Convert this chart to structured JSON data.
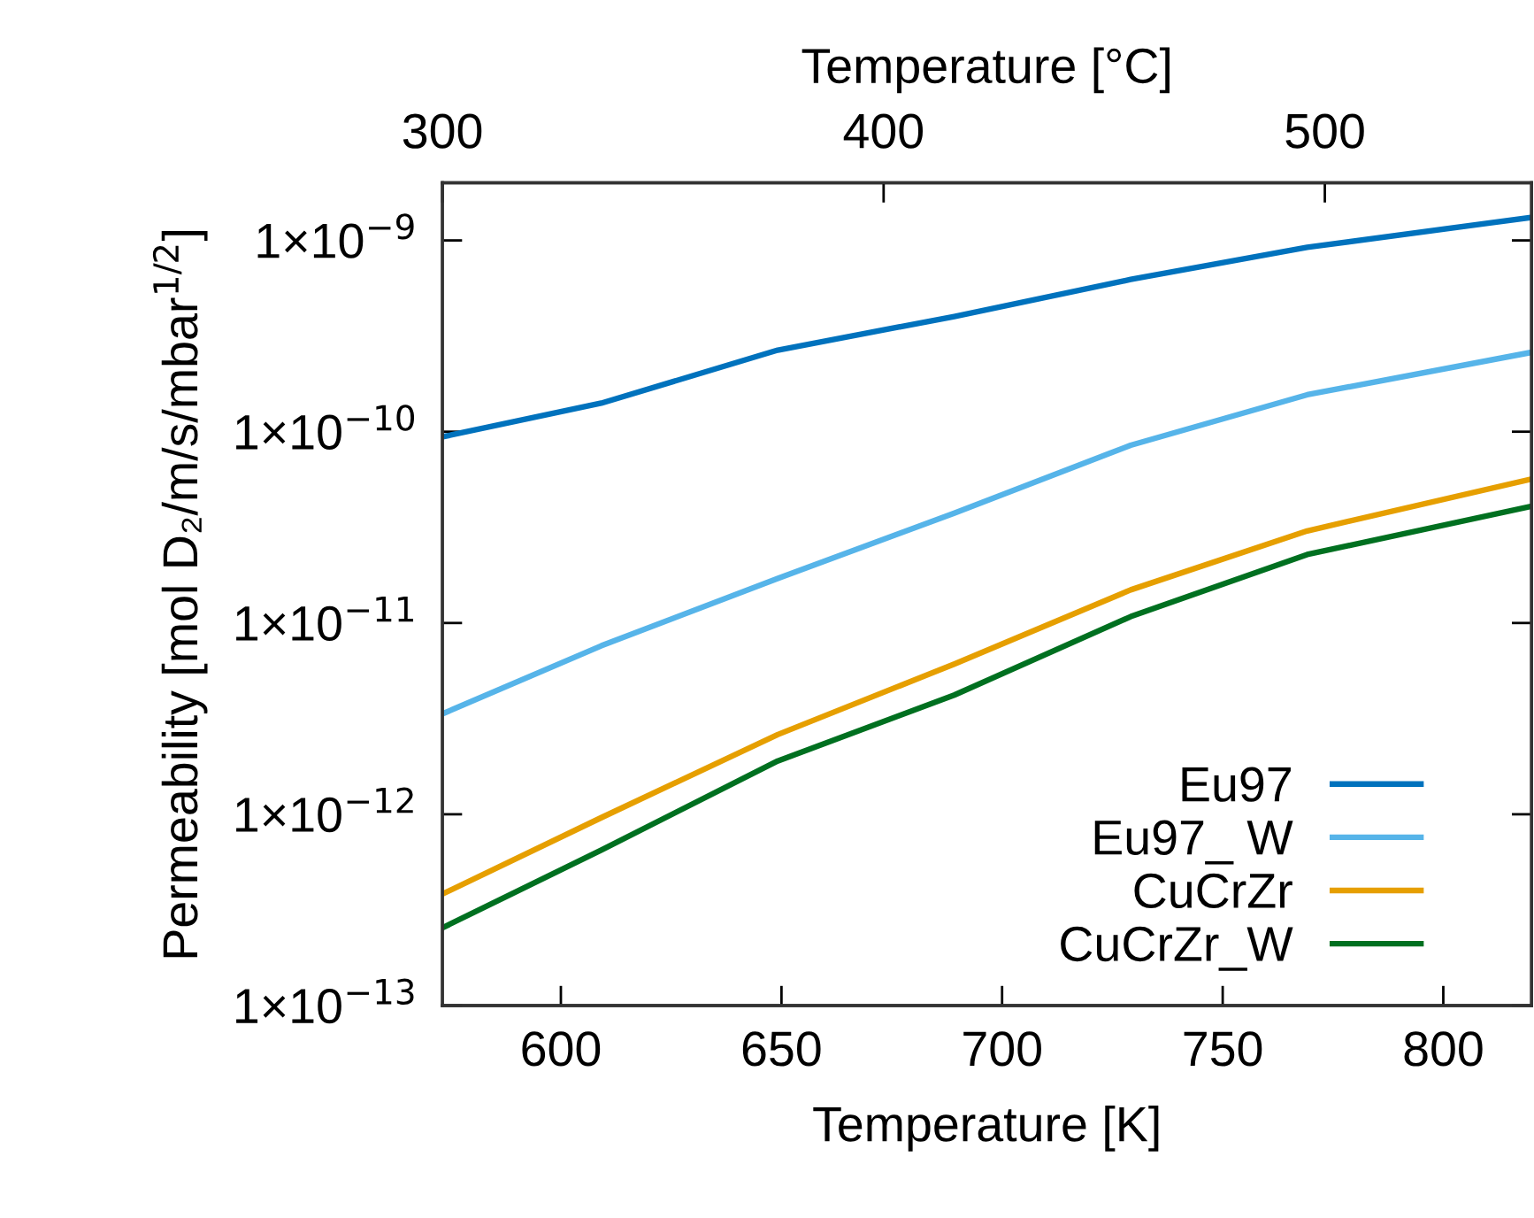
{
  "chart_data": {
    "type": "line",
    "xlabel": "Temperature [K]",
    "x2label": "Temperature [°C]",
    "ylabel": "Permeability [mol D₂/m/s/mbar$^{1/2}$]",
    "x": [
      573.15,
      609.15,
      649.15,
      689.15,
      729.15,
      769.15,
      820
    ],
    "series": [
      {
        "name": "Eu97",
        "color": "#0072bd",
        "values": [
          9.4e-11,
          1.41e-10,
          2.67e-10,
          4e-10,
          6.25e-10,
          9.2e-10,
          1.32e-09
        ]
      },
      {
        "name": "Eu97_ W",
        "color": "#56b4e9",
        "values": [
          3.35e-12,
          7.6e-12,
          1.71e-11,
          3.75e-11,
          8.5e-11,
          1.56e-10,
          2.6e-10
        ]
      },
      {
        "name": "CuCrZr",
        "color": "#e69f00",
        "values": [
          3.83e-13,
          9.6e-13,
          2.61e-12,
          6.1e-12,
          1.49e-11,
          3.03e-11,
          5.66e-11
        ]
      },
      {
        "name": "CuCrZr_W",
        "color": "#007020",
        "values": [
          2.55e-13,
          6.5e-13,
          1.9e-12,
          4.2e-12,
          1.08e-11,
          2.28e-11,
          4.08e-11
        ]
      }
    ],
    "log": "y",
    "xlim": [
      573.15,
      820
    ],
    "xticks": [
      600,
      650,
      700,
      750,
      800
    ],
    "x2lim": [
      300,
      546.85
    ],
    "x2ticks": [
      300,
      400,
      500
    ],
    "ylim": [
      1e-13,
      2e-09
    ],
    "yticks": [
      {
        "value": 1e-13,
        "label": "1×10$^{−13}$"
      },
      {
        "value": 1e-12,
        "label": "1×10$^{−12}$"
      },
      {
        "value": 1e-11,
        "label": "1×10$^{−11}$"
      },
      {
        "value": 1e-10,
        "label": "1×10$^{−10}$"
      },
      {
        "value": 1e-09,
        "label": "1×10$^{−9}$"
      }
    ],
    "grid": false,
    "legend": "bottom right",
    "line_style": "solid",
    "marker": "none"
  }
}
